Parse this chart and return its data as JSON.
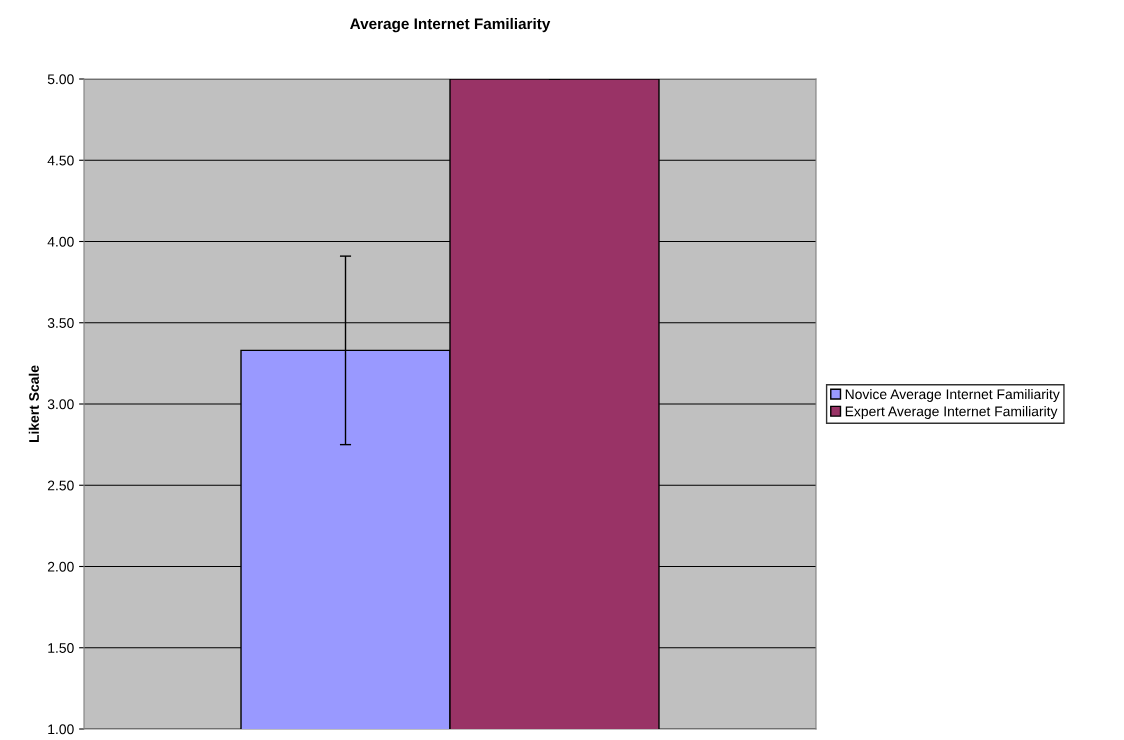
{
  "chart_data": {
    "type": "bar",
    "title": "Average Internet Familiarity",
    "ylabel": "Likert Scale",
    "categories": [
      null
    ],
    "series": [
      {
        "name": "Novice Average Internet Familiarity",
        "color": "#9999ff",
        "values": [
          3.33
        ],
        "errors": [
          [
            2.75,
            3.91
          ]
        ]
      },
      {
        "name": "Expert Average Internet Familiarity",
        "color": "#993366",
        "values": [
          5.0
        ],
        "errors": [
          0
        ]
      }
    ],
    "ylim": [
      1,
      5
    ],
    "yticks": [
      {
        "value": 1,
        "label": "1.00"
      },
      {
        "value": 1.5,
        "label": "1.50"
      },
      {
        "value": 2,
        "label": "2.00"
      },
      {
        "value": 2.5,
        "label": "2.50"
      },
      {
        "value": 3,
        "label": "3.00"
      },
      {
        "value": 3.5,
        "label": "3.50"
      },
      {
        "value": 4,
        "label": "4.00"
      },
      {
        "value": 4.5,
        "label": "4.50"
      },
      {
        "value": 5,
        "label": "5.00"
      }
    ],
    "grid": "y",
    "legend": "right"
  }
}
